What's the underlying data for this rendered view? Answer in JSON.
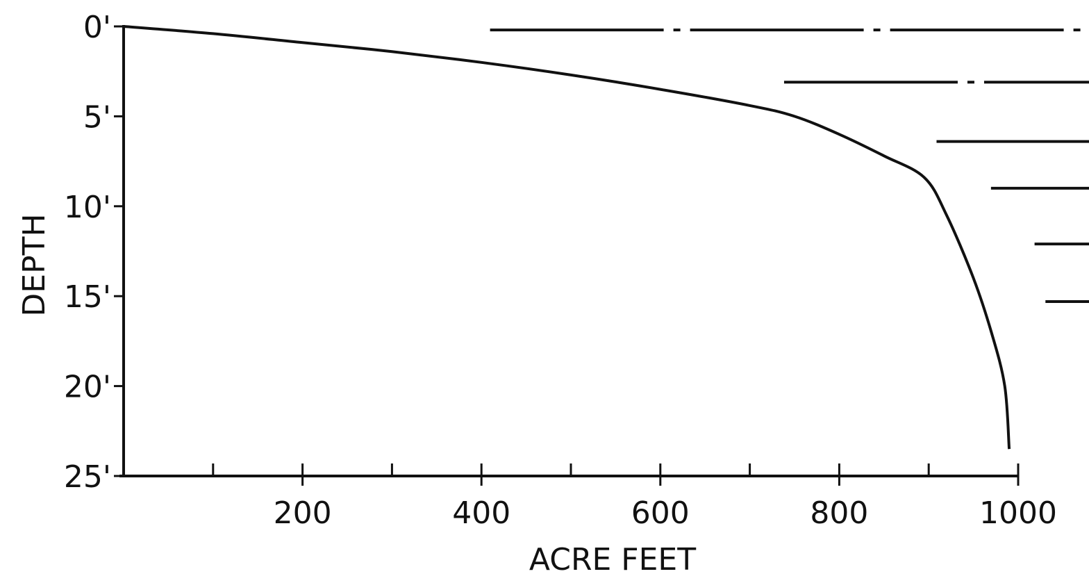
{
  "chart_data": {
    "type": "line",
    "title": "",
    "xlabel": "ACRE FEET",
    "ylabel": "DEPTH",
    "xlim": [
      0,
      1000
    ],
    "ylim": [
      0,
      25
    ],
    "y_inverted": true,
    "grid": false,
    "x_ticks": [
      {
        "value": 200,
        "label": "200"
      },
      {
        "value": 400,
        "label": "400"
      },
      {
        "value": 600,
        "label": "600"
      },
      {
        "value": 800,
        "label": "800"
      },
      {
        "value": 1000,
        "label": "1000"
      }
    ],
    "x_minor_ticks": [
      100,
      300,
      500,
      700,
      900
    ],
    "y_ticks": [
      {
        "value": 0,
        "label": "0'"
      },
      {
        "value": 5,
        "label": "5'"
      },
      {
        "value": 10,
        "label": "10'"
      },
      {
        "value": 15,
        "label": "15'"
      },
      {
        "value": 20,
        "label": "20'"
      },
      {
        "value": 25,
        "label": "25'"
      }
    ],
    "series": [
      {
        "x": [
          0,
          100,
          200,
          300,
          400,
          500,
          600,
          700,
          750,
          800,
          850,
          895,
          920,
          950,
          970,
          985,
          990
        ],
        "y": [
          0,
          0.4,
          0.9,
          1.4,
          2.0,
          2.7,
          3.5,
          4.4,
          5.0,
          6.0,
          7.2,
          8.4,
          10.5,
          14.0,
          17.0,
          20.0,
          23.5
        ]
      }
    ],
    "water_level_lines": [
      {
        "y": 0.2,
        "x_start_frac": 0.45
      },
      {
        "y": 3.1,
        "x_start_frac": 0.72
      },
      {
        "y": 6.4,
        "x_start_frac": 0.86
      },
      {
        "y": 9.0,
        "x_start_frac": 0.91
      },
      {
        "y": 12.1,
        "x_start_frac": 0.95
      },
      {
        "y": 15.3,
        "x_start_frac": 0.96
      }
    ]
  }
}
